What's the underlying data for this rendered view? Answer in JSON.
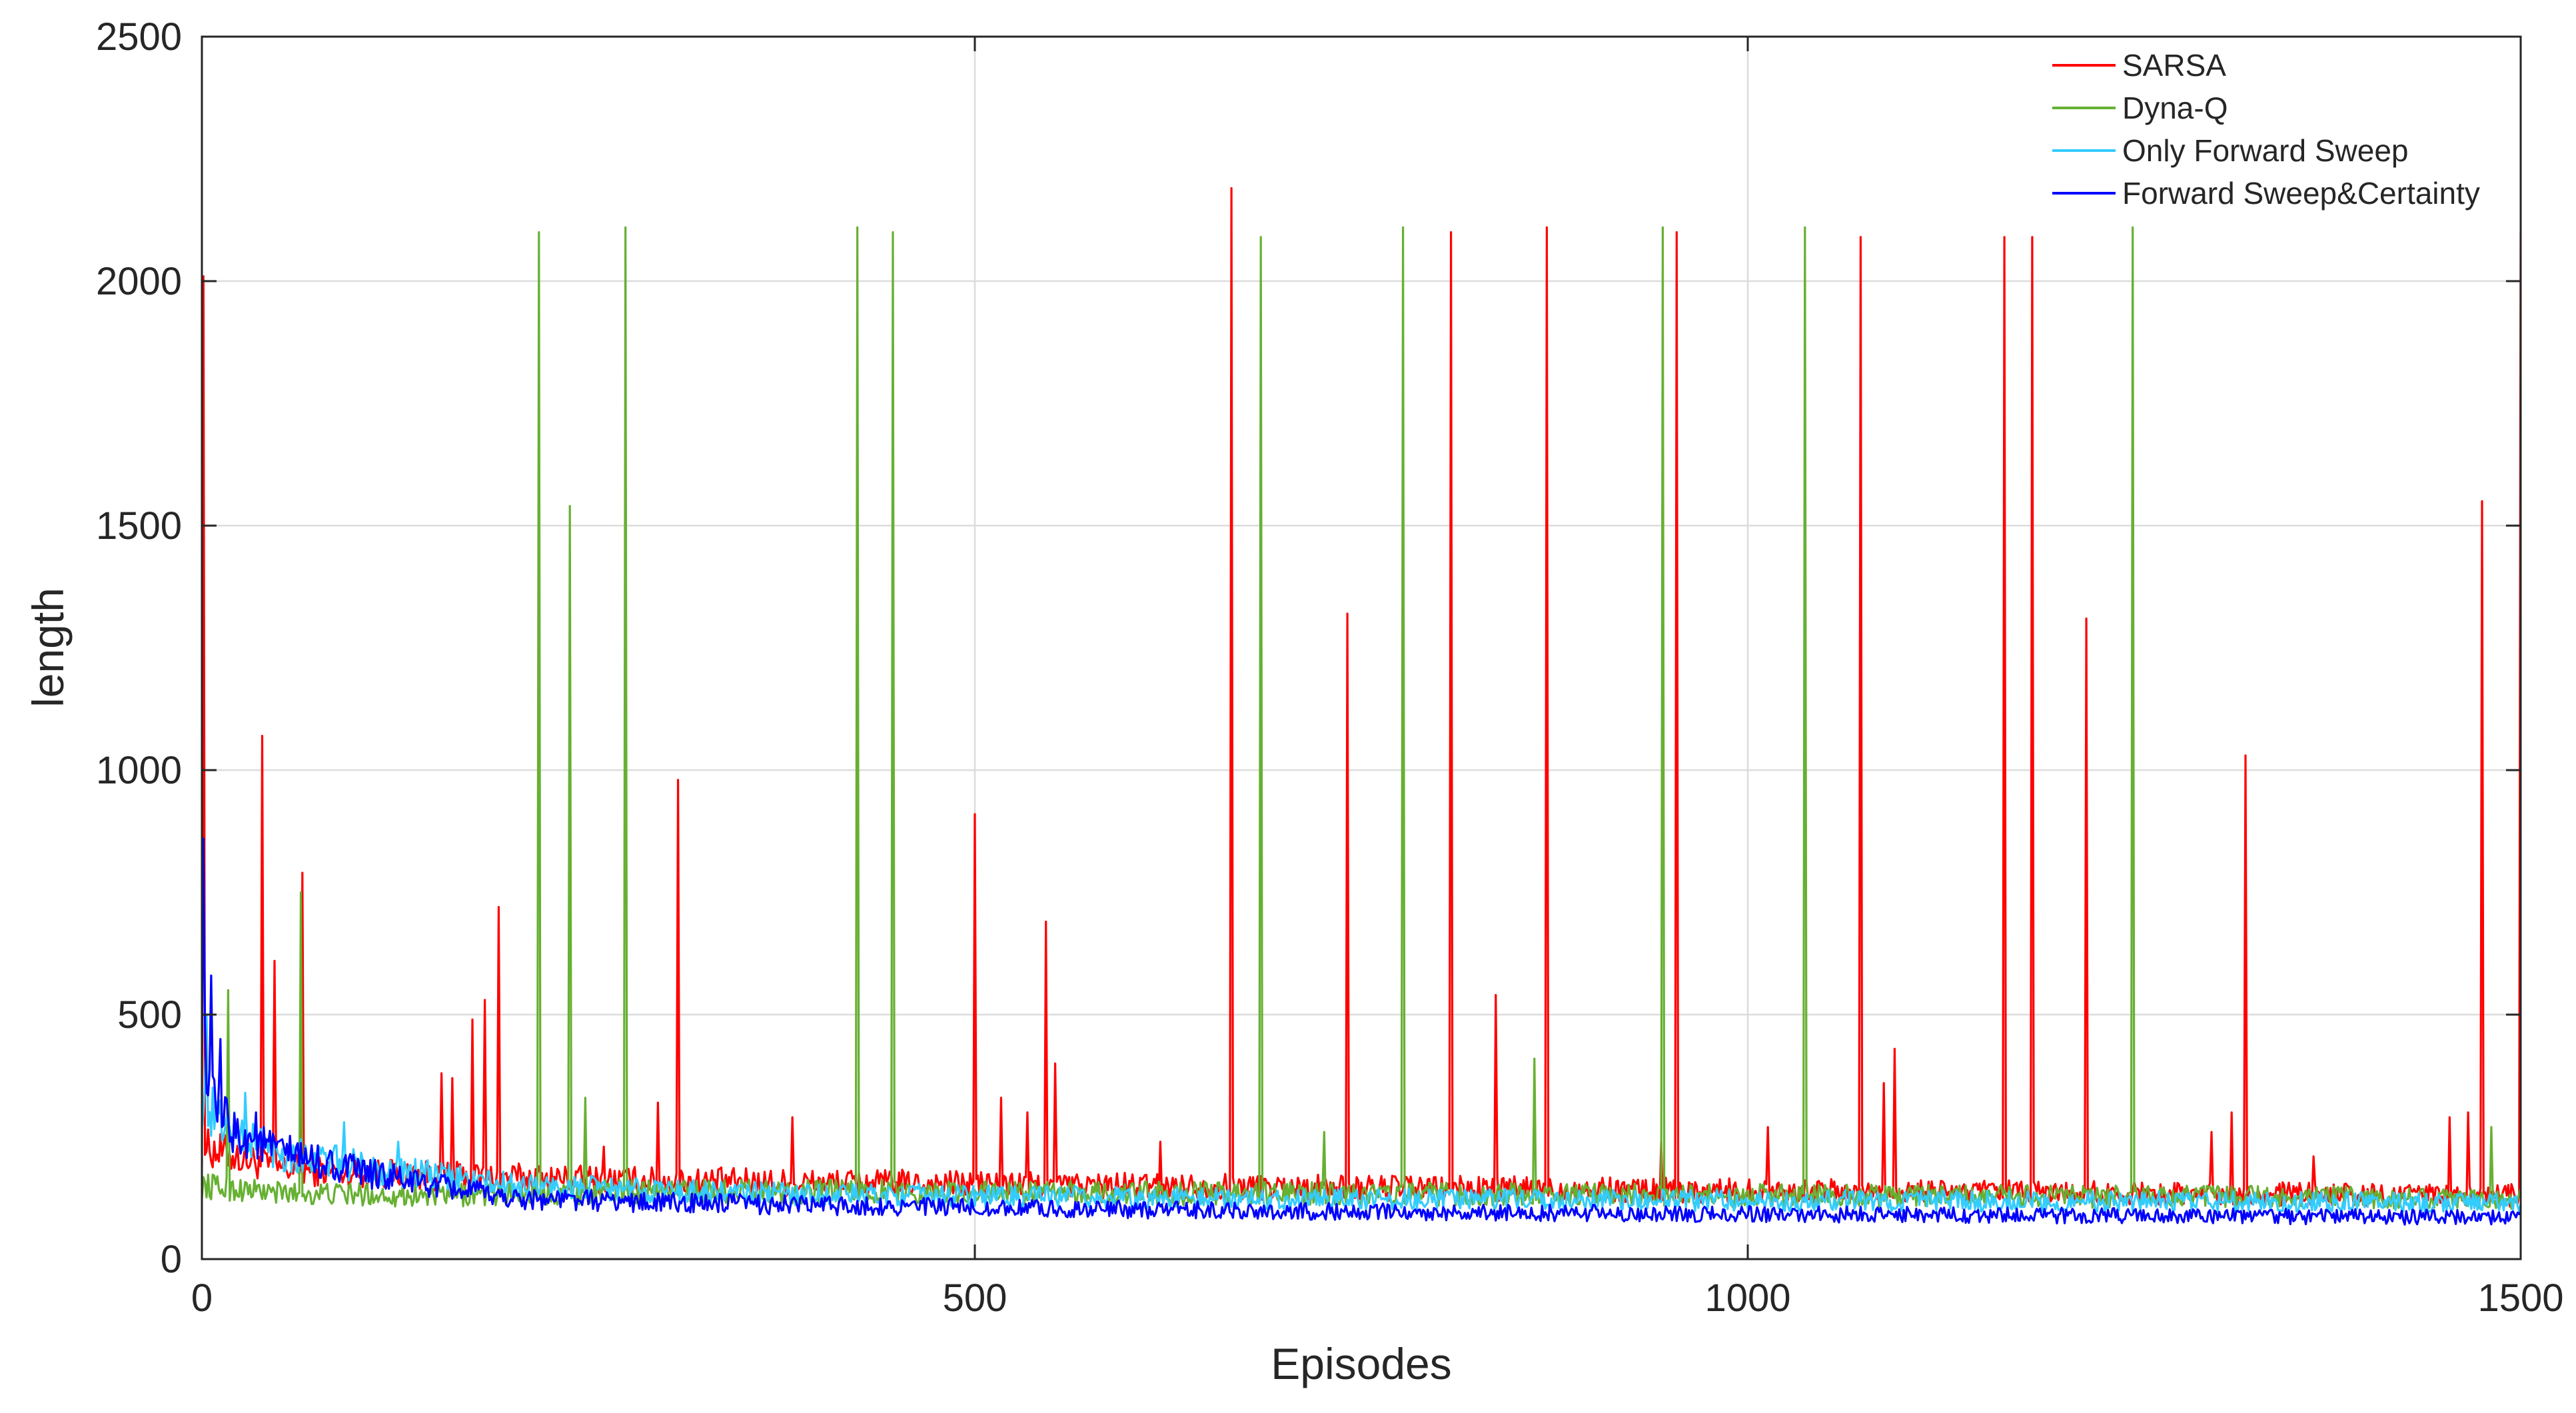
{
  "chart_data": {
    "type": "line",
    "title": "",
    "xlabel": "Episodes",
    "ylabel": "length",
    "xlim": [
      0,
      1500
    ],
    "ylim": [
      0,
      2500
    ],
    "xticks": [
      0,
      500,
      1000,
      1500
    ],
    "yticks": [
      0,
      500,
      1000,
      1500,
      2000,
      2500
    ],
    "grid": true,
    "legend_position": "top-right",
    "series": [
      {
        "name": "SARSA",
        "color": "#ff0000",
        "baseline": [
          [
            0,
            230
          ],
          [
            50,
            185
          ],
          [
            150,
            170
          ],
          [
            300,
            160
          ],
          [
            600,
            150
          ],
          [
            1000,
            140
          ],
          [
            1500,
            130
          ]
        ],
        "spikes": [
          [
            1,
            2010
          ],
          [
            39,
            1070
          ],
          [
            47,
            610
          ],
          [
            65,
            790
          ],
          [
            155,
            380
          ],
          [
            162,
            370
          ],
          [
            175,
            490
          ],
          [
            183,
            530
          ],
          [
            192,
            720
          ],
          [
            260,
            230
          ],
          [
            295,
            320
          ],
          [
            308,
            980
          ],
          [
            382,
            290
          ],
          [
            500,
            910
          ],
          [
            517,
            330
          ],
          [
            534,
            300
          ],
          [
            546,
            690
          ],
          [
            552,
            400
          ],
          [
            620,
            240
          ],
          [
            666,
            2190
          ],
          [
            741,
            1320
          ],
          [
            808,
            2100
          ],
          [
            837,
            540
          ],
          [
            870,
            2110
          ],
          [
            944,
            240
          ],
          [
            954,
            2100
          ],
          [
            1013,
            270
          ],
          [
            1073,
            2090
          ],
          [
            1088,
            360
          ],
          [
            1095,
            430
          ],
          [
            1166,
            2090
          ],
          [
            1184,
            2090
          ],
          [
            1219,
            1310
          ],
          [
            1300,
            260
          ],
          [
            1313,
            300
          ],
          [
            1322,
            1030
          ],
          [
            1366,
            210
          ],
          [
            1454,
            290
          ],
          [
            1466,
            300
          ],
          [
            1475,
            1550
          ],
          [
            1500,
            2100
          ],
          [
            1503,
            300
          ]
        ]
      },
      {
        "name": "Dyna-Q",
        "color": "#66b032",
        "baseline": [
          [
            0,
            150
          ],
          [
            50,
            135
          ],
          [
            150,
            130
          ],
          [
            300,
            140
          ],
          [
            600,
            135
          ],
          [
            1000,
            130
          ],
          [
            1500,
            125
          ]
        ],
        "spikes": [
          [
            17,
            550
          ],
          [
            64,
            750
          ],
          [
            218,
            2100
          ],
          [
            238,
            1540
          ],
          [
            248,
            330
          ],
          [
            274,
            2110
          ],
          [
            424,
            2110
          ],
          [
            447,
            2100
          ],
          [
            685,
            2090
          ],
          [
            726,
            260
          ],
          [
            777,
            2110
          ],
          [
            862,
            410
          ],
          [
            945,
            2110
          ],
          [
            1037,
            2110
          ],
          [
            1249,
            2110
          ],
          [
            1481,
            270
          ]
        ]
      },
      {
        "name": "Only Forward Sweep",
        "color": "#33ccff",
        "baseline": [
          [
            0,
            320
          ],
          [
            20,
            260
          ],
          [
            50,
            220
          ],
          [
            100,
            190
          ],
          [
            200,
            150
          ],
          [
            350,
            135
          ],
          [
            600,
            125
          ],
          [
            1000,
            120
          ],
          [
            1500,
            115
          ]
        ],
        "spikes": [
          [
            3,
            500
          ],
          [
            28,
            340
          ],
          [
            92,
            280
          ],
          [
            127,
            240
          ]
        ]
      },
      {
        "name": "Forward Sweep&Certainty",
        "color": "#0000ff",
        "baseline": [
          [
            0,
            500
          ],
          [
            5,
            330
          ],
          [
            20,
            260
          ],
          [
            50,
            220
          ],
          [
            100,
            180
          ],
          [
            150,
            150
          ],
          [
            200,
            125
          ],
          [
            300,
            115
          ],
          [
            500,
            105
          ],
          [
            700,
            98
          ],
          [
            1000,
            92
          ],
          [
            1500,
            85
          ]
        ],
        "spikes": [
          [
            1,
            860
          ],
          [
            6,
            580
          ],
          [
            12,
            450
          ],
          [
            35,
            300
          ]
        ]
      }
    ]
  }
}
